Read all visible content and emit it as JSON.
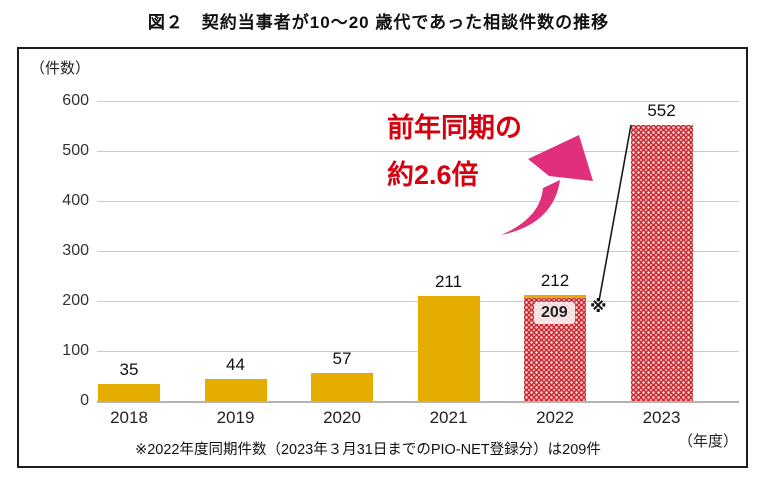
{
  "title": "図２　契約当事者が10～20 歳代であった相談件数の推移",
  "chart_data": {
    "type": "bar",
    "title": "図２　契約当事者が10～20 歳代であった相談件数の推移",
    "ylabel": "（件数）",
    "xlabel": "（年度）",
    "categories": [
      "2018",
      "2019",
      "2020",
      "2021",
      "2022",
      "2023"
    ],
    "values": [
      35,
      44,
      57,
      211,
      212,
      552
    ],
    "bar_styles": [
      "orange",
      "orange",
      "orange",
      "orange",
      "split",
      "pattern"
    ],
    "ylim": [
      0,
      600
    ],
    "yticks": [
      0,
      100,
      200,
      300,
      400,
      500,
      600
    ],
    "grid": true,
    "legend": "none",
    "note_bar": {
      "category": "2022",
      "same_period_value": "209",
      "marker": "※"
    },
    "colors": {
      "bar_orange": "#e5ad00",
      "bar_red_pattern": "#ce2a32",
      "annotation_text": "#d7000f",
      "arrow_pink": "#e0307c",
      "leader_line": "#1a1a1a"
    }
  },
  "annotation": {
    "line1": "前年同期の",
    "line2": "約2.6倍"
  },
  "footnote": "※2022年度同期件数（2023年３月31日までのPIO-NET登録分）は209件",
  "footnote_marker": "※"
}
